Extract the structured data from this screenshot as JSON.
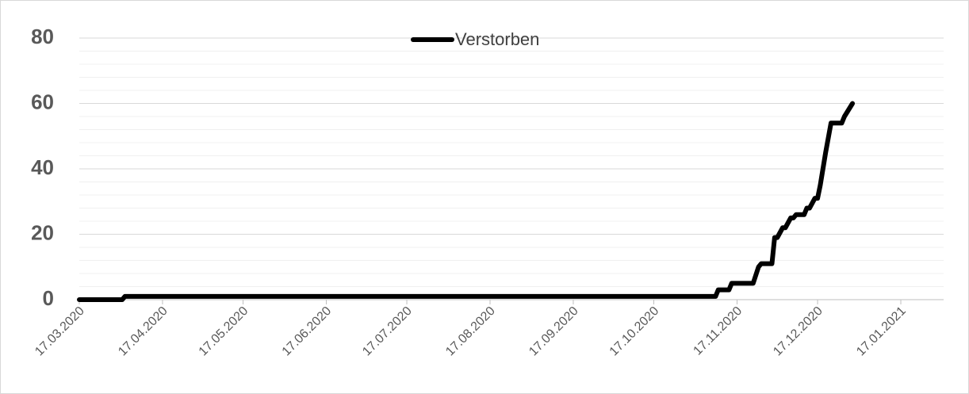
{
  "chart_data": {
    "type": "line",
    "x": [
      "17.03.2020",
      "02.04.2020",
      "03.04.2020",
      "09.11.2020",
      "10.11.2020",
      "14.11.2020",
      "15.11.2020",
      "23.11.2020",
      "25.11.2020",
      "26.11.2020",
      "30.11.2020",
      "01.12.2020",
      "02.12.2020",
      "04.12.2020",
      "05.12.2020",
      "07.12.2020",
      "08.12.2020",
      "09.12.2020",
      "12.12.2020",
      "13.12.2020",
      "14.12.2020",
      "16.12.2020",
      "17.12.2020",
      "18.12.2020",
      "20.12.2020",
      "22.12.2020",
      "26.12.2020",
      "27.12.2020",
      "30.12.2020"
    ],
    "series": [
      {
        "name": "Verstorben",
        "color": "#000000",
        "values": [
          0,
          0,
          1,
          1,
          3,
          3,
          5,
          5,
          10,
          11,
          11,
          19,
          19,
          22,
          22,
          25,
          25,
          26,
          26,
          28,
          28,
          31,
          31,
          35,
          45,
          54,
          54,
          56,
          60
        ]
      }
    ],
    "xlim": [
      "17.03.2020",
      "17.01.2021"
    ],
    "xticks": [
      "17.03.2020",
      "17.04.2020",
      "17.05.2020",
      "17.06.2020",
      "17.07.2020",
      "17.08.2020",
      "17.09.2020",
      "17.10.2020",
      "17.11.2020",
      "17.12.2020",
      "17.01.2021"
    ],
    "ylim": [
      0,
      80
    ],
    "yticks": [
      0,
      20,
      40,
      60,
      80
    ],
    "minor_yticks": [
      4,
      8,
      12,
      16,
      24,
      28,
      32,
      36,
      44,
      48,
      52,
      56,
      64,
      68,
      72,
      76
    ],
    "grid": true,
    "legend": "top"
  }
}
